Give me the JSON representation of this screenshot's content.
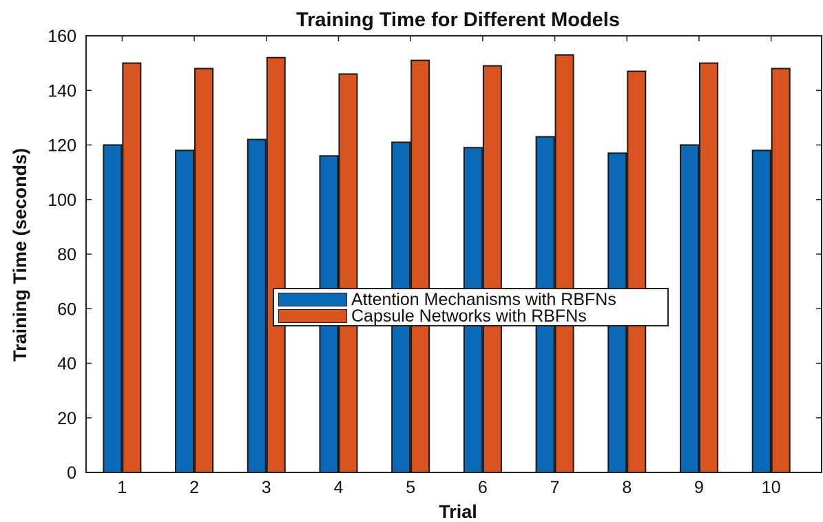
{
  "chart_data": {
    "type": "bar",
    "title": "Training Time for Different Models",
    "xlabel": "Trial",
    "ylabel": "Training Time (seconds)",
    "categories": [
      "1",
      "2",
      "3",
      "4",
      "5",
      "6",
      "7",
      "8",
      "9",
      "10"
    ],
    "ylim": [
      0,
      160
    ],
    "yticks": [
      0,
      20,
      40,
      60,
      80,
      100,
      120,
      140,
      160
    ],
    "grid": false,
    "legend_position": "center",
    "series": [
      {
        "name": "Attention Mechanisms with RBFNs",
        "color": "#0b6ab8",
        "values": [
          120,
          118,
          122,
          116,
          121,
          119,
          123,
          117,
          120,
          118
        ]
      },
      {
        "name": "Capsule Networks with RBFNs",
        "color": "#d9541f",
        "values": [
          150,
          148,
          152,
          146,
          151,
          149,
          153,
          147,
          150,
          148
        ]
      }
    ]
  }
}
